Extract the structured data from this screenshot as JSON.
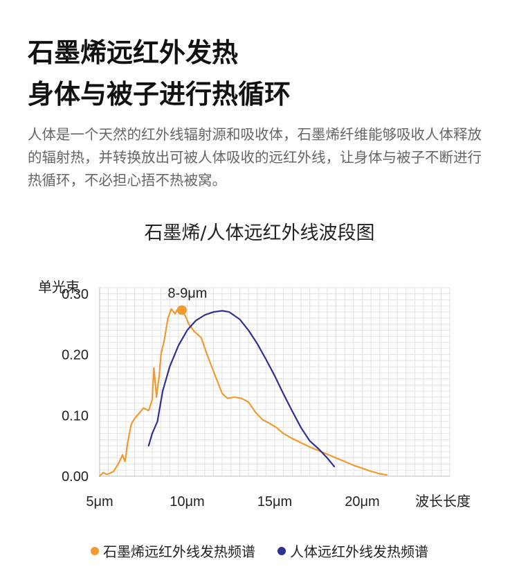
{
  "headline": {
    "line1": "石墨烯远红外发热",
    "line2": "身体与被子进行热循环"
  },
  "description": "人体是一个天然的红外线辐射源和吸收体，石墨烯纤维能够吸收人体释放的辐射热，并转换放出可被人体吸收的远红外线，让身体与被子不断进行热循环，不必担心捂不热被窝。",
  "chart_data": {
    "type": "line",
    "title": "石墨烯/人体远红外线波段图",
    "ylabel": "单光束",
    "xlabel": "波长长度",
    "xlim": [
      5,
      25
    ],
    "ylim": [
      0,
      0.31
    ],
    "x_ticks": [
      {
        "value": 5,
        "label": "5μm"
      },
      {
        "value": 10,
        "label": "10μm"
      },
      {
        "value": 15,
        "label": "15μm"
      },
      {
        "value": 20,
        "label": "20μm"
      }
    ],
    "y_ticks": [
      {
        "value": 0,
        "label": "0.00"
      },
      {
        "value": 0.1,
        "label": "0.10"
      },
      {
        "value": 0.2,
        "label": "0.20"
      },
      {
        "value": 0.3,
        "label": "0.30"
      }
    ],
    "grid": true,
    "annotation": {
      "text": "8-9μm",
      "x": 9.7,
      "y": 0.273
    },
    "series": [
      {
        "name": "石墨烯远红外线发热频谱",
        "color": "#F29A2E",
        "points": [
          [
            5.0,
            0.0
          ],
          [
            5.2,
            0.006
          ],
          [
            5.4,
            0.003
          ],
          [
            5.6,
            0.005
          ],
          [
            5.8,
            0.008
          ],
          [
            6.1,
            0.022
          ],
          [
            6.3,
            0.035
          ],
          [
            6.45,
            0.024
          ],
          [
            6.6,
            0.055
          ],
          [
            6.8,
            0.085
          ],
          [
            7.0,
            0.095
          ],
          [
            7.3,
            0.105
          ],
          [
            7.5,
            0.112
          ],
          [
            7.8,
            0.108
          ],
          [
            8.0,
            0.125
          ],
          [
            8.1,
            0.178
          ],
          [
            8.25,
            0.13
          ],
          [
            8.4,
            0.165
          ],
          [
            8.5,
            0.2
          ],
          [
            8.7,
            0.225
          ],
          [
            8.9,
            0.26
          ],
          [
            9.1,
            0.275
          ],
          [
            9.3,
            0.267
          ],
          [
            9.5,
            0.277
          ],
          [
            9.7,
            0.273
          ],
          [
            9.9,
            0.263
          ],
          [
            10.1,
            0.25
          ],
          [
            10.4,
            0.238
          ],
          [
            10.8,
            0.228
          ],
          [
            11.1,
            0.203
          ],
          [
            11.4,
            0.18
          ],
          [
            11.7,
            0.158
          ],
          [
            12.0,
            0.136
          ],
          [
            12.3,
            0.128
          ],
          [
            12.7,
            0.13
          ],
          [
            13.1,
            0.128
          ],
          [
            13.5,
            0.122
          ],
          [
            13.9,
            0.105
          ],
          [
            14.3,
            0.093
          ],
          [
            14.7,
            0.087
          ],
          [
            15.1,
            0.08
          ],
          [
            15.5,
            0.07
          ],
          [
            16.0,
            0.062
          ],
          [
            16.5,
            0.055
          ],
          [
            17.0,
            0.048
          ],
          [
            17.5,
            0.042
          ],
          [
            18.0,
            0.036
          ],
          [
            18.5,
            0.03
          ],
          [
            19.0,
            0.024
          ],
          [
            19.5,
            0.018
          ],
          [
            20.0,
            0.013
          ],
          [
            20.5,
            0.008
          ],
          [
            21.0,
            0.004
          ],
          [
            21.4,
            0.002
          ]
        ]
      },
      {
        "name": "人体远红外线发热频谱",
        "color": "#2E3191",
        "points": [
          [
            7.8,
            0.05
          ],
          [
            8.0,
            0.07
          ],
          [
            8.3,
            0.09
          ],
          [
            8.6,
            0.14
          ],
          [
            9.0,
            0.18
          ],
          [
            9.5,
            0.215
          ],
          [
            10.0,
            0.24
          ],
          [
            10.5,
            0.256
          ],
          [
            11.0,
            0.265
          ],
          [
            11.5,
            0.27
          ],
          [
            12.0,
            0.272
          ],
          [
            12.4,
            0.27
          ],
          [
            13.0,
            0.258
          ],
          [
            13.5,
            0.24
          ],
          [
            14.0,
            0.218
          ],
          [
            14.5,
            0.192
          ],
          [
            15.0,
            0.165
          ],
          [
            15.5,
            0.135
          ],
          [
            16.0,
            0.107
          ],
          [
            16.5,
            0.08
          ],
          [
            17.0,
            0.058
          ],
          [
            17.5,
            0.045
          ],
          [
            18.0,
            0.03
          ],
          [
            18.4,
            0.016
          ]
        ]
      }
    ],
    "legend": {
      "position": "bottom"
    }
  }
}
